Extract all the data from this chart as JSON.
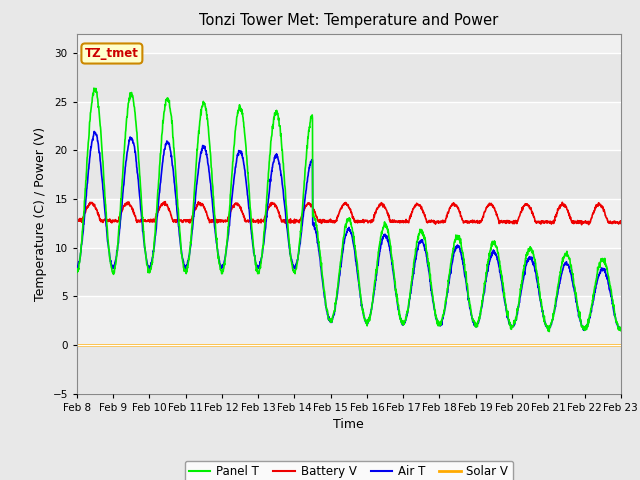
{
  "title": "Tonzi Tower Met: Temperature and Power",
  "xlabel": "Time",
  "ylabel": "Temperature (C) / Power (V)",
  "ylim": [
    -5,
    32
  ],
  "yticks": [
    -5,
    0,
    5,
    10,
    15,
    20,
    25,
    30
  ],
  "annotation_text": "TZ_tmet",
  "annotation_color": "#cc0000",
  "annotation_box_color": "#ffffcc",
  "annotation_box_edge": "#cc8800",
  "fig_color": "#e8e8e8",
  "plot_bg_color": "#f0f0f0",
  "grid_color": "white",
  "colors": {
    "panel_t": "#00ee00",
    "battery_v": "#ee0000",
    "air_t": "#0000ee",
    "solar_v": "#ffaa00"
  },
  "legend_labels": [
    "Panel T",
    "Battery V",
    "Air T",
    "Solar V"
  ],
  "x_tick_labels": [
    "Feb 8",
    "Feb 9",
    "Feb 10",
    "Feb 11",
    "Feb 12",
    "Feb 13",
    "Feb 14",
    "Feb 15",
    "Feb 16",
    "Feb 17",
    "Feb 18",
    "Feb 19",
    "Feb 20",
    "Feb 21",
    "Feb 22",
    "Feb 23"
  ]
}
